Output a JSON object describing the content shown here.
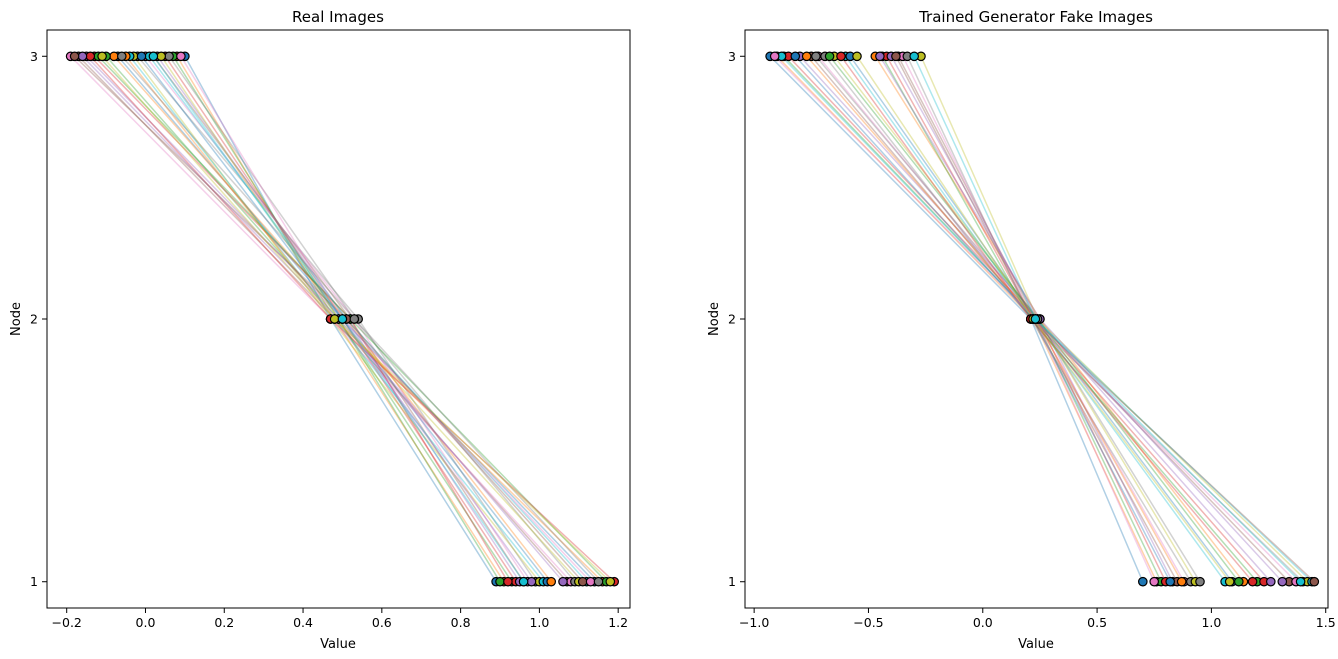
{
  "chart_data": [
    {
      "type": "line",
      "title": "Real Images",
      "xlabel": "Value",
      "ylabel": "Node",
      "xlim": [
        -0.25,
        1.23
      ],
      "ylim": [
        0.9,
        3.1
      ],
      "xticks": [
        -0.2,
        0.0,
        0.2,
        0.4,
        0.6,
        0.8,
        1.0,
        1.2
      ],
      "yticks": [
        1,
        2,
        3
      ],
      "grid": false,
      "series_count": 30,
      "node1_values": [
        0.89,
        0.91,
        0.93,
        0.94,
        0.95,
        0.96,
        0.97,
        0.99,
        1.0,
        1.01,
        1.02,
        1.03,
        0.9,
        0.92,
        0.98,
        1.07,
        1.08,
        1.09,
        1.1,
        1.12,
        1.14,
        1.16,
        1.17,
        1.19,
        1.06,
        1.11,
        1.13,
        1.15,
        1.18,
        0.96
      ],
      "node2_values": [
        0.47,
        0.48,
        0.49,
        0.5,
        0.51,
        0.52,
        0.53,
        0.54,
        0.47,
        0.48,
        0.5,
        0.51,
        0.49,
        0.52,
        0.5,
        0.48,
        0.47,
        0.53,
        0.49,
        0.51,
        0.5,
        0.48,
        0.52,
        0.47,
        0.49,
        0.51,
        0.5,
        0.53,
        0.48,
        0.5
      ],
      "node3_values": [
        0.1,
        0.08,
        0.07,
        0.05,
        0.03,
        0.02,
        0.0,
        -0.02,
        -0.03,
        -0.04,
        -0.07,
        -0.08,
        -0.1,
        -0.13,
        -0.15,
        -0.17,
        -0.19,
        0.06,
        0.04,
        0.01,
        -0.01,
        -0.05,
        -0.12,
        -0.14,
        -0.16,
        -0.18,
        0.09,
        -0.06,
        -0.11,
        0.02
      ]
    },
    {
      "type": "line",
      "title": "Trained Generator Fake Images",
      "xlabel": "Value",
      "ylabel": "Node",
      "xlim": [
        -1.04,
        1.51
      ],
      "ylim": [
        0.9,
        3.1
      ],
      "xticks": [
        -1.0,
        -0.5,
        0.0,
        0.5,
        1.0,
        1.5
      ],
      "yticks": [
        1,
        2,
        3
      ],
      "grid": false,
      "series_count": 30,
      "node1_values": [
        0.7,
        0.76,
        0.78,
        0.8,
        0.83,
        0.85,
        0.88,
        0.91,
        0.93,
        1.06,
        1.09,
        1.14,
        1.2,
        1.23,
        1.26,
        1.34,
        1.37,
        1.4,
        1.42,
        1.44,
        0.82,
        0.87,
        1.12,
        1.18,
        1.31,
        1.45,
        0.75,
        0.95,
        1.08,
        1.39
      ],
      "node2_values": [
        0.21,
        0.22,
        0.23,
        0.24,
        0.25,
        0.22,
        0.23,
        0.21,
        0.24,
        0.22,
        0.23,
        0.25,
        0.21,
        0.22,
        0.24,
        0.23,
        0.22,
        0.21,
        0.24,
        0.23,
        0.22,
        0.23,
        0.24,
        0.21,
        0.25,
        0.22,
        0.23,
        0.24,
        0.22,
        0.23
      ],
      "node3_values": [
        -0.93,
        -0.9,
        -0.87,
        -0.85,
        -0.8,
        -0.75,
        -0.72,
        -0.69,
        -0.65,
        -0.6,
        -0.58,
        -0.47,
        -0.44,
        -0.42,
        -0.4,
        -0.37,
        -0.35,
        -0.33,
        -0.27,
        -0.88,
        -0.82,
        -0.77,
        -0.67,
        -0.62,
        -0.45,
        -0.38,
        -0.91,
        -0.73,
        -0.55,
        -0.3
      ]
    }
  ],
  "colors": [
    "#1f77b4",
    "#ff7f0e",
    "#2ca02c",
    "#d62728",
    "#9467bd",
    "#8c564b",
    "#e377c2",
    "#7f7f7f",
    "#bcbd22",
    "#17becf"
  ]
}
